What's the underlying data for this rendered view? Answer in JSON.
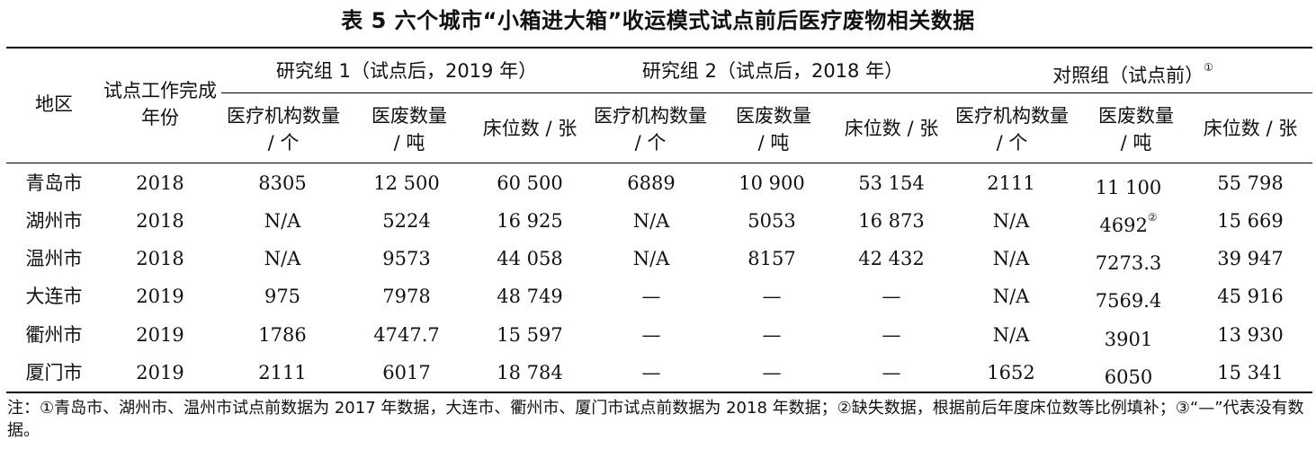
{
  "title": "表 5  六个城市“小箱进大箱”收运模式试点前后医疗废物相关数据",
  "headers": {
    "region": "地区",
    "year": "试点工作完成年份",
    "group1": "研究组 1（试点后，2019 年）",
    "group2": "研究组 2（试点后，2018 年）",
    "control": "对照组（试点前）",
    "control_sup": "①",
    "sub_institutions": "医疗机构数量 / 个",
    "sub_waste": "医废数量 / 吨",
    "sub_beds": "床位数 / 张"
  },
  "rows": [
    {
      "city": "青岛市",
      "year": "2018",
      "g1_inst": "8305",
      "g1_waste": "12 500",
      "g1_beds": "60 500",
      "g2_inst": "6889",
      "g2_waste": "10 900",
      "g2_beds": "53 154",
      "c_inst": "2111",
      "c_waste": "11 100",
      "c_waste_sup": "",
      "c_beds": "55 798"
    },
    {
      "city": "湖州市",
      "year": "2018",
      "g1_inst": "N/A",
      "g1_waste": "5224",
      "g1_beds": "16 925",
      "g2_inst": "N/A",
      "g2_waste": "5053",
      "g2_beds": "16 873",
      "c_inst": "N/A",
      "c_waste": "4692",
      "c_waste_sup": "②",
      "c_beds": "15 669"
    },
    {
      "city": "温州市",
      "year": "2018",
      "g1_inst": "N/A",
      "g1_waste": "9573",
      "g1_beds": "44 058",
      "g2_inst": "N/A",
      "g2_waste": "8157",
      "g2_beds": "42 432",
      "c_inst": "N/A",
      "c_waste": "7273.3",
      "c_waste_sup": "",
      "c_beds": "39 947"
    },
    {
      "city": "大连市",
      "year": "2019",
      "g1_inst": "975",
      "g1_waste": "7978",
      "g1_beds": "48 749",
      "g2_inst": "—",
      "g2_waste": "—",
      "g2_beds": "—",
      "c_inst": "N/A",
      "c_waste": "7569.4",
      "c_waste_sup": "",
      "c_beds": "45 916"
    },
    {
      "city": "衢州市",
      "year": "2019",
      "g1_inst": "1786",
      "g1_waste": "4747.7",
      "g1_beds": "15 597",
      "g2_inst": "—",
      "g2_waste": "—",
      "g2_beds": "—",
      "c_inst": "N/A",
      "c_waste": "3901",
      "c_waste_sup": "",
      "c_beds": "13 930"
    },
    {
      "city": "厦门市",
      "year": "2019",
      "g1_inst": "2111",
      "g1_waste": "6017",
      "g1_beds": "18 784",
      "g2_inst": "—",
      "g2_waste": "—",
      "g2_beds": "—",
      "c_inst": "1652",
      "c_waste": "6050",
      "c_waste_sup": "",
      "c_beds": "15 341"
    }
  ],
  "note": "注：①青岛市、湖州市、温州市试点前数据为 2017 年数据，大连市、衢州市、厦门市试点前数据为 2018 年数据；②缺失数据，根据前后年度床位数等比例填补；③“—”代表没有数据。"
}
